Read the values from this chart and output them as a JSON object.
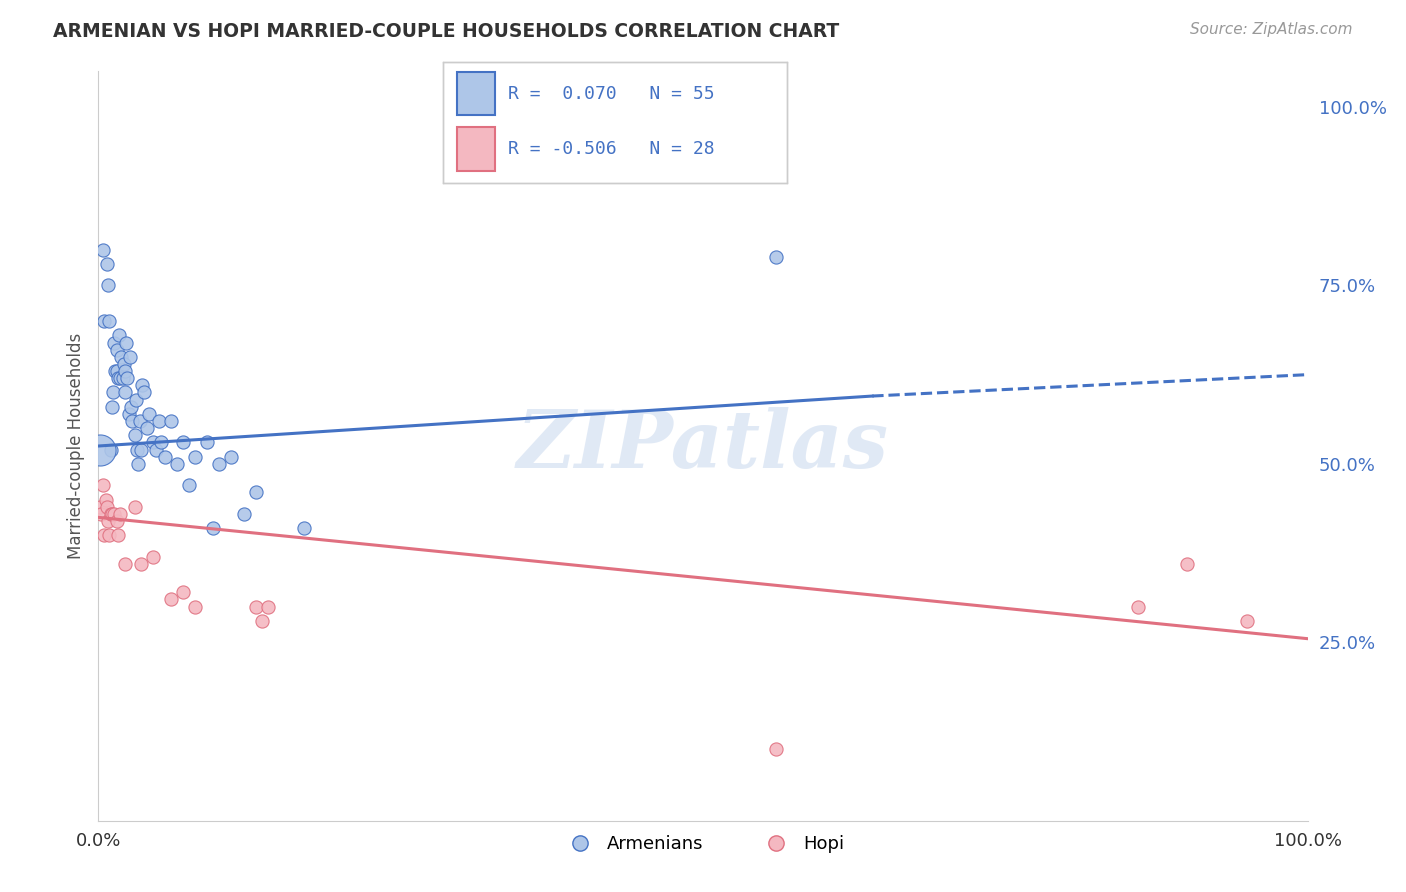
{
  "title": "ARMENIAN VS HOPI MARRIED-COUPLE HOUSEHOLDS CORRELATION CHART",
  "source": "Source: ZipAtlas.com",
  "ylabel": "Married-couple Households",
  "watermark": "ZIPatlas",
  "armenian_R": 0.07,
  "armenian_N": 55,
  "hopi_R": -0.506,
  "hopi_N": 28,
  "armenian_color": "#aec6e8",
  "armenian_line_color": "#4472c4",
  "hopi_color": "#f4b8c1",
  "hopi_line_color": "#e07080",
  "armenian_x": [
    0.001,
    0.004,
    0.005,
    0.007,
    0.008,
    0.009,
    0.01,
    0.011,
    0.012,
    0.013,
    0.014,
    0.015,
    0.015,
    0.016,
    0.017,
    0.018,
    0.019,
    0.02,
    0.021,
    0.022,
    0.022,
    0.023,
    0.024,
    0.025,
    0.026,
    0.027,
    0.028,
    0.03,
    0.031,
    0.032,
    0.033,
    0.034,
    0.035,
    0.036,
    0.038,
    0.04,
    0.042,
    0.045,
    0.048,
    0.05,
    0.052,
    0.055,
    0.06,
    0.065,
    0.07,
    0.075,
    0.08,
    0.09,
    0.095,
    0.1,
    0.11,
    0.12,
    0.13,
    0.17,
    0.56
  ],
  "armenian_y": [
    0.52,
    0.8,
    0.7,
    0.78,
    0.75,
    0.7,
    0.52,
    0.58,
    0.6,
    0.67,
    0.63,
    0.66,
    0.63,
    0.62,
    0.68,
    0.62,
    0.65,
    0.62,
    0.64,
    0.6,
    0.63,
    0.67,
    0.62,
    0.57,
    0.65,
    0.58,
    0.56,
    0.54,
    0.59,
    0.52,
    0.5,
    0.56,
    0.52,
    0.61,
    0.6,
    0.55,
    0.57,
    0.53,
    0.52,
    0.56,
    0.53,
    0.51,
    0.56,
    0.5,
    0.53,
    0.47,
    0.51,
    0.53,
    0.41,
    0.5,
    0.51,
    0.43,
    0.46,
    0.41,
    0.79
  ],
  "armenian_x_big": [
    0.001
  ],
  "armenian_y_big": [
    0.52
  ],
  "hopi_x": [
    0.001,
    0.002,
    0.004,
    0.005,
    0.006,
    0.007,
    0.008,
    0.009,
    0.01,
    0.011,
    0.013,
    0.015,
    0.016,
    0.018,
    0.022,
    0.03,
    0.035,
    0.045,
    0.06,
    0.07,
    0.08,
    0.13,
    0.135,
    0.14,
    0.56,
    0.86,
    0.9,
    0.95
  ],
  "hopi_y": [
    0.44,
    0.43,
    0.47,
    0.4,
    0.45,
    0.44,
    0.42,
    0.4,
    0.43,
    0.43,
    0.43,
    0.42,
    0.4,
    0.43,
    0.36,
    0.44,
    0.36,
    0.37,
    0.31,
    0.32,
    0.3,
    0.3,
    0.28,
    0.3,
    0.1,
    0.3,
    0.36,
    0.28
  ],
  "armenian_line_x": [
    0.0,
    0.64,
    1.0
  ],
  "armenian_line_y_start": 0.525,
  "armenian_line_y_mid": 0.595,
  "armenian_line_y_end": 0.625,
  "hopi_line_x": [
    0.0,
    1.0
  ],
  "hopi_line_y_start": 0.425,
  "hopi_line_y_end": 0.255,
  "xlim": [
    0.0,
    1.0
  ],
  "ylim": [
    0.0,
    1.05
  ],
  "yticks": [
    0.25,
    0.5,
    0.75,
    1.0
  ],
  "ytick_labels": [
    "25.0%",
    "50.0%",
    "75.0%",
    "100.0%"
  ],
  "background_color": "#ffffff",
  "grid_color": "#d0d0d0",
  "legend_box_color_armenian": "#aec6e8",
  "legend_box_color_hopi": "#f4b8c1",
  "marker_size": 90,
  "marker_size_big": 500,
  "legend_armenian_text": "R =  0.070   N = 55",
  "legend_hopi_text": "R = -0.506   N = 28",
  "legend_label_armenian": "Armenians",
  "legend_label_hopi": "Hopi"
}
